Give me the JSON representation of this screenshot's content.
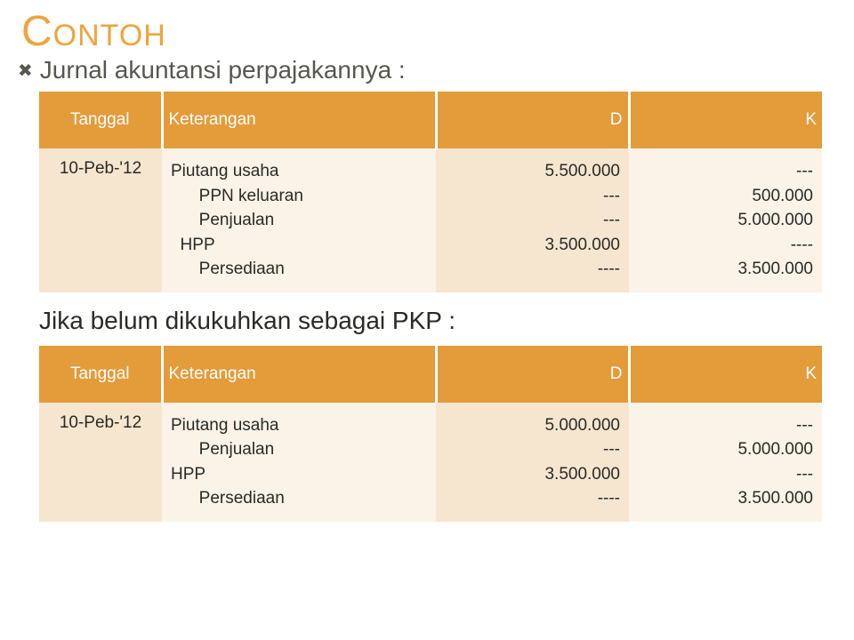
{
  "colors": {
    "title": "#f0a43c",
    "subtitle": "#56574f",
    "header_bg": "#e49b3a",
    "header_sep": "#ffffff",
    "row_alt": "#f6e6d0",
    "row_main": "#fbf3e8",
    "text": "#2a2a26"
  },
  "title": "Contoh",
  "subtitle": "Jurnal akuntansi perpajakannya :",
  "midline": "Jika belum dikukuhkan sebagai PKP :",
  "headers": {
    "tgl": "Tanggal",
    "ket": "Keterangan",
    "d": "D",
    "k": "K"
  },
  "table1": {
    "tgl": "10-Peb-'12",
    "desc": "Piutang usaha\n      PPN keluaran\n      Penjualan\n  HPP\n      Persediaan",
    "d": "5.500.000\n---\n---\n3.500.000\n----",
    "k": "---\n500.000\n5.000.000\n----\n3.500.000"
  },
  "table2": {
    "tgl": "10-Peb-'12",
    "desc": "Piutang usaha\n      Penjualan\nHPP\n      Persediaan",
    "d": "5.000.000\n---\n3.500.000\n----",
    "k": "---\n5.000.000\n---\n3.500.000"
  }
}
